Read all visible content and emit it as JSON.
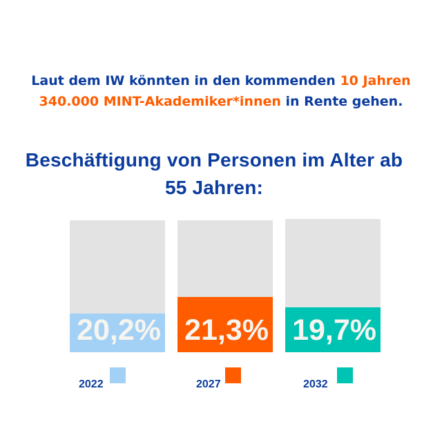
{
  "intro": {
    "part1": "Laut dem IW könnten in den kommenden ",
    "highlight": "10 Jahren 340.000 MINT-Akademiker*innen",
    "part2": " in Rente gehen."
  },
  "chart_data": {
    "type": "bar",
    "title": "Beschäftigung von Personen im Alter ab 55 Jahren:",
    "categories": [
      "2022",
      "2027",
      "2032"
    ],
    "values": [
      20.2,
      21.3,
      19.7
    ],
    "value_labels": [
      "20,2%",
      "21,3%",
      "19,7%"
    ],
    "unit": "%",
    "colors": [
      "#a3d1f5",
      "#ff5c00",
      "#00c4b3"
    ],
    "background_color": "#e3e3e3",
    "legend": "bottom"
  }
}
